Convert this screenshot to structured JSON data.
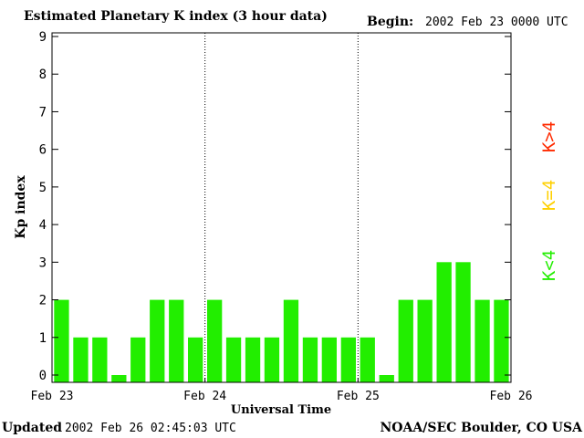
{
  "header": {
    "title": "Estimated Planetary K index (3 hour data)",
    "begin_label": "Begin:",
    "begin_value": "2002 Feb 23 0000 UTC"
  },
  "footer": {
    "updated_label": "Updated",
    "updated_value": "2002 Feb 26 02:45:03 UTC",
    "credit": "NOAA/SEC Boulder, CO USA"
  },
  "legend": [
    {
      "label": "K>4",
      "color": "#ff2a00"
    },
    {
      "label": "K=4",
      "color": "#ffd000"
    },
    {
      "label": "K<4",
      "color": "#22ee00"
    }
  ],
  "colors": {
    "bar_below_4": "#22ee00",
    "bar_equal_4": "#ffd000",
    "bar_above_4": "#ff2a00",
    "axes": "#000000"
  },
  "chart_data": {
    "type": "bar",
    "title": "Estimated Planetary K index (3 hour data)",
    "xlabel": "Universal Time",
    "ylabel": "Kp index",
    "ylim": [
      0,
      9
    ],
    "yticks": [
      0,
      1,
      2,
      3,
      4,
      5,
      6,
      7,
      8,
      9
    ],
    "xticks": [
      "Feb 23",
      "Feb 24",
      "Feb 25",
      "Feb 26"
    ],
    "day_separators": [
      "Feb 24",
      "Feb 25"
    ],
    "grid": false,
    "bar_interval_hours": 3,
    "values": [
      2,
      1,
      1,
      0,
      1,
      2,
      2,
      1,
      2,
      1,
      1,
      1,
      2,
      1,
      1,
      1,
      1,
      0,
      2,
      2,
      3,
      3,
      2,
      2
    ]
  }
}
